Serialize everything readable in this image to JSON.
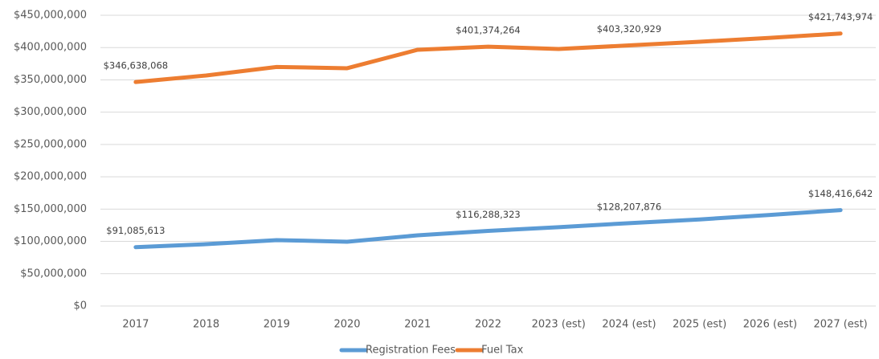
{
  "chart_data": {
    "type": "line",
    "categories": [
      "2017",
      "2018",
      "2019",
      "2020",
      "2021",
      "2022",
      "2023 (est)",
      "2024 (est)",
      "2025 (est)",
      "2026 (est)",
      "2027 (est)"
    ],
    "series": [
      {
        "name": "Registration Fees",
        "color": "#5b9bd5",
        "values": [
          91085613,
          95700000,
          102000000,
          99500000,
          109400000,
          116288323,
          122000000,
          128207876,
          134000000,
          141000000,
          148416642
        ],
        "value_labels": [
          "$91,085,613",
          null,
          null,
          null,
          null,
          "$116,288,323",
          null,
          "$128,207,876",
          null,
          null,
          "$148,416,642"
        ]
      },
      {
        "name": "Fuel Tax",
        "color": "#ed7d31",
        "values": [
          346638068,
          356800000,
          370000000,
          368000000,
          396600000,
          401374264,
          397800000,
          403320929,
          409000000,
          415000000,
          421743974
        ],
        "value_labels": [
          "$346,638,068",
          null,
          null,
          null,
          null,
          "$401,374,264",
          null,
          "$403,320,929",
          null,
          null,
          "$421,743,974"
        ]
      }
    ],
    "ylim": [
      0,
      450000000
    ],
    "yticks": [
      {
        "value": 0,
        "label": "$0"
      },
      {
        "value": 50000000,
        "label": "$50,000,000"
      },
      {
        "value": 100000000,
        "label": "$100,000,000"
      },
      {
        "value": 150000000,
        "label": "$150,000,000"
      },
      {
        "value": 200000000,
        "label": "$200,000,000"
      },
      {
        "value": 250000000,
        "label": "$250,000,000"
      },
      {
        "value": 300000000,
        "label": "$300,000,000"
      },
      {
        "value": 350000000,
        "label": "$350,000,000"
      },
      {
        "value": 400000000,
        "label": "$400,000,000"
      },
      {
        "value": 450000000,
        "label": "$450,000,000"
      }
    ],
    "grid": true,
    "legend": "bottom"
  }
}
